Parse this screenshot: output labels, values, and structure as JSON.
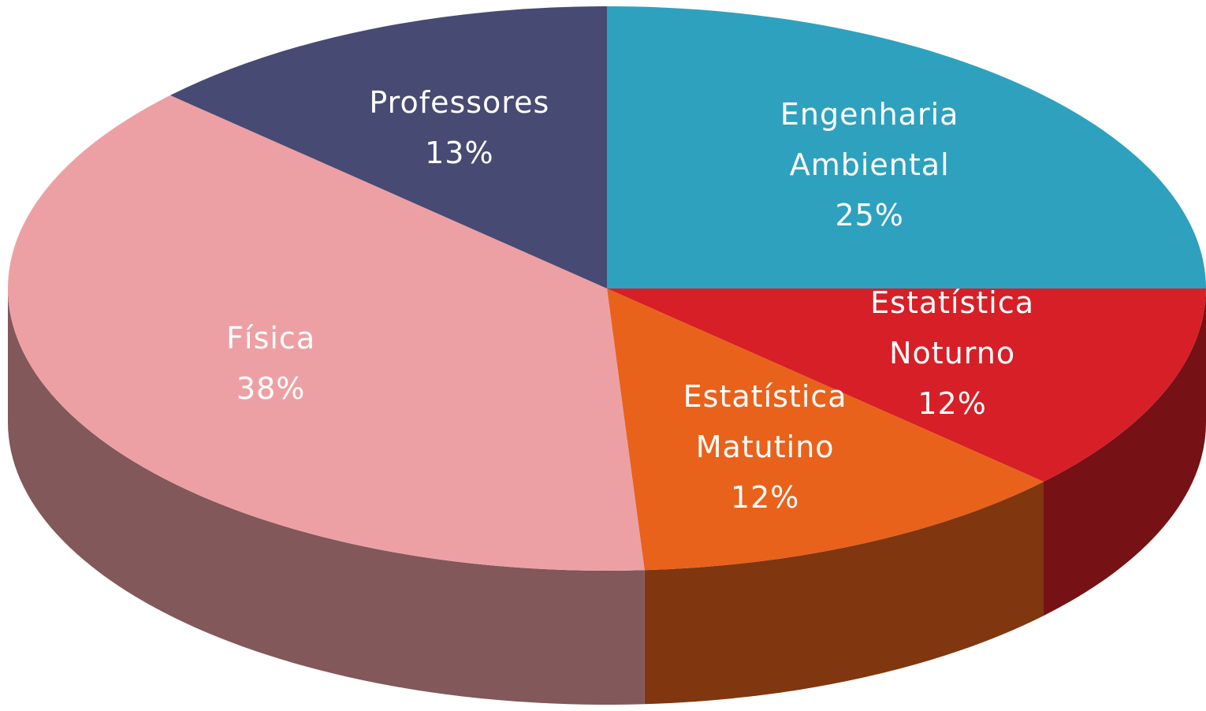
{
  "chart_data": {
    "type": "pie",
    "categories": [
      "Engenharia Ambiental",
      "Estatística Noturno",
      "Estatística Matutino",
      "Física",
      "Professores"
    ],
    "values": [
      25,
      12,
      12,
      38,
      13
    ],
    "value_labels": [
      "25%",
      "12%",
      "12%",
      "38%",
      "13%"
    ],
    "colors": [
      "#2ea1bf",
      "#d71f27",
      "#e8621c",
      "#eda0a4",
      "#474a72"
    ],
    "three_d": true
  }
}
